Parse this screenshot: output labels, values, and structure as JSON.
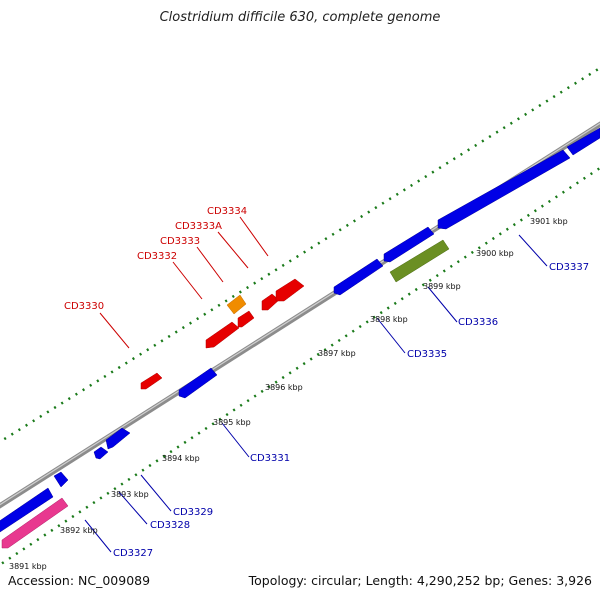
{
  "title": "Clostridium difficile 630, complete genome",
  "footer": {
    "accession": "Accession: NC_009089",
    "summary": "Topology: circular; Length: 4,290,252 bp; Genes: 3,926"
  },
  "colors": {
    "backbone": "#8c8c8c",
    "forward": "#e60000",
    "forward_alt": "#f08c00",
    "reverse": "#0000e6",
    "reverse_alt_green": "#6b8f23",
    "reverse_alt_pink": "#e8388f",
    "label_forward": "#cc0000",
    "label_reverse": "#0000aa",
    "tick": "#1a7a1a"
  },
  "scale_labels": [
    "3891 kbp",
    "3892 kbp",
    "3893 kbp",
    "3894 kbp",
    "3895 kbp",
    "3896 kbp",
    "3897 kbp",
    "3898 kbp",
    "3899 kbp",
    "3900 kbp",
    "3901 kbp"
  ],
  "genes_forward": [
    {
      "label": "CD3330"
    },
    {
      "label": "CD3332"
    },
    {
      "label": "CD3333"
    },
    {
      "label": "CD3333A"
    },
    {
      "label": "CD3334"
    }
  ],
  "genes_reverse": [
    {
      "label": "CD3327"
    },
    {
      "label": "CD3328"
    },
    {
      "label": "CD3329"
    },
    {
      "label": "CD3331"
    },
    {
      "label": "CD3335"
    },
    {
      "label": "CD3336"
    },
    {
      "label": "CD3337"
    }
  ]
}
